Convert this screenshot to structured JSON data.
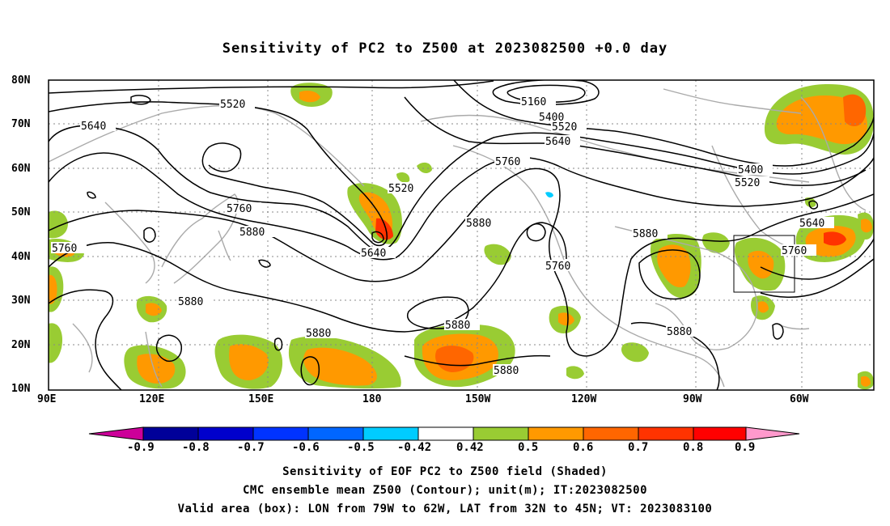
{
  "title": "Sensitivity of PC2 to Z500 at 2023082500 +0.0 day",
  "y_axis_labels": [
    "80N",
    "70N",
    "60N",
    "50N",
    "40N",
    "30N",
    "20N",
    "10N"
  ],
  "x_axis_labels": [
    "90E",
    "120E",
    "150E",
    "180",
    "150W",
    "120W",
    "90W",
    "60W"
  ],
  "contour_labels": {
    "c5520a": "5520",
    "c5640a": "5640",
    "c5160": "5160",
    "c5400a": "5400",
    "c5520b": "5520",
    "c5640b": "5640",
    "c5760a": "5760",
    "c5520c": "5520",
    "c5760b": "5760",
    "c5880a": "5880",
    "c5640c": "5640",
    "c5880b": "5880",
    "c5760c": "5760",
    "c5880c": "5880",
    "c5400b": "5400",
    "c5520d": "5520",
    "c5640d": "5640",
    "c5760d": "5760",
    "c5760e": "5760",
    "c5880d": "5880",
    "c5880e": "5880",
    "c5880f": "5880",
    "c5880g": "5880",
    "c5880h": "5880"
  },
  "colorbar": {
    "labels": [
      "-0.9",
      "-0.8",
      "-0.7",
      "-0.6",
      "-0.5",
      "-0.42",
      "0.42",
      "0.5",
      "0.6",
      "0.7",
      "0.8",
      "0.9"
    ],
    "colors": [
      "#000099",
      "#0000cc",
      "#0033ff",
      "#0066ff",
      "#00ccff",
      "#ffffff",
      "#99cc33",
      "#ff9900",
      "#ff6600",
      "#ff3300",
      "#ff0000"
    ],
    "low_extend_color": "#cc0099",
    "high_extend_color": "#ff99cc"
  },
  "captions": {
    "line1": "Sensitivity of EOF PC2 to Z500 field (Shaded)",
    "line2": "CMC ensemble mean Z500 (Contour); unit(m); IT:2023082500",
    "line3": "Valid area (box): LON from 79W to 62W, LAT from 32N to 45N; VT: 2023083100"
  },
  "valid_box": {
    "lon_west": "79W",
    "lon_east": "62W",
    "lat_south": "32N",
    "lat_north": "45N"
  }
}
